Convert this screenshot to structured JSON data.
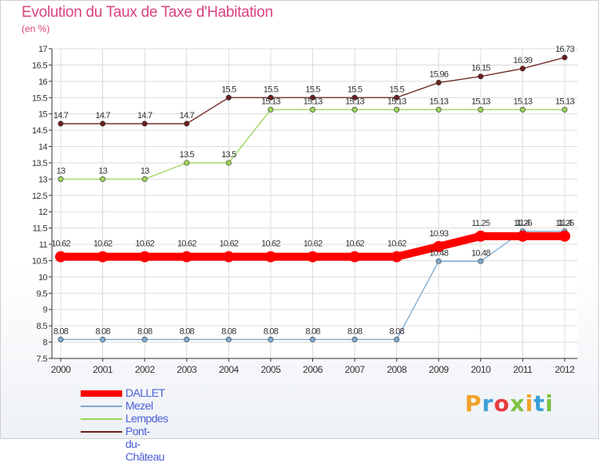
{
  "header": {
    "title": "Evolution du Taux de Taxe d'Habitation",
    "subtitle": "(en %)"
  },
  "logo": {
    "text": "Proxiti",
    "colors": [
      "#f2a12b",
      "#3aa0d8",
      "#e83c3c",
      "#7cc243",
      "#f2a12b",
      "#3aa0d8",
      "#7cc243"
    ]
  },
  "chart_data": {
    "type": "line",
    "title": "Evolution du Taux de Taxe d'Habitation",
    "ylabel": "(en %)",
    "xlabel": "",
    "x": [
      "2000",
      "2001",
      "2002",
      "2003",
      "2004",
      "2005",
      "2006",
      "2007",
      "2008",
      "2009",
      "2010",
      "2011",
      "2012"
    ],
    "ylim": [
      7.5,
      17
    ],
    "yticks": [
      "7.5",
      "8",
      "8.5",
      "9",
      "9.5",
      "10",
      "10.5",
      "11",
      "11.5",
      "12",
      "12.5",
      "13",
      "13.5",
      "14",
      "14.5",
      "15",
      "15.5",
      "16",
      "16.5",
      "17"
    ],
    "grid": true,
    "legend_position": "bottom-left",
    "series": [
      {
        "name": "DALLET",
        "color": "#ff0000",
        "values": [
          10.62,
          10.62,
          10.62,
          10.62,
          10.62,
          10.62,
          10.62,
          10.62,
          10.62,
          10.93,
          11.25,
          11.25,
          11.25
        ],
        "labels": [
          "10.62",
          "10.62",
          "10.62",
          "10.62",
          "10.62",
          "10.62",
          "10.62",
          "10.62",
          "10.62",
          "10.93",
          "11.25",
          "11.25",
          "11.25"
        ]
      },
      {
        "name": "Mezel",
        "color": "#7fa9cf",
        "values": [
          8.08,
          8.08,
          8.08,
          8.08,
          8.08,
          8.08,
          8.08,
          8.08,
          8.08,
          10.48,
          10.48,
          11.4,
          11.4
        ],
        "labels": [
          "8.08",
          "8.08",
          "8.08",
          "8.08",
          "8.08",
          "8.08",
          "8.08",
          "8.08",
          "8.08",
          "10.48",
          "10.48",
          "11.4",
          "11.4"
        ]
      },
      {
        "name": "Lempdes",
        "color": "#9ad65a",
        "values": [
          13,
          13,
          13,
          13.5,
          13.5,
          15.13,
          15.13,
          15.13,
          15.13,
          15.13,
          15.13,
          15.13,
          15.13
        ],
        "labels": [
          "13",
          "13",
          "13",
          "13.5",
          "13.5",
          "15.13",
          "15.13",
          "15.13",
          "15.13",
          "15.13",
          "15.13",
          "15.13",
          "15.13"
        ]
      },
      {
        "name": "Pont-du-Château",
        "color": "#6b1f1f",
        "values": [
          14.7,
          14.7,
          14.7,
          14.7,
          15.5,
          15.5,
          15.5,
          15.5,
          15.5,
          15.96,
          16.15,
          16.39,
          16.73
        ],
        "labels": [
          "14.7",
          "14.7",
          "14.7",
          "14.7",
          "15.5",
          "15.5",
          "15.5",
          "15.5",
          "15.5",
          "15.96",
          "16.15",
          "16.39",
          "16.73"
        ]
      }
    ]
  }
}
